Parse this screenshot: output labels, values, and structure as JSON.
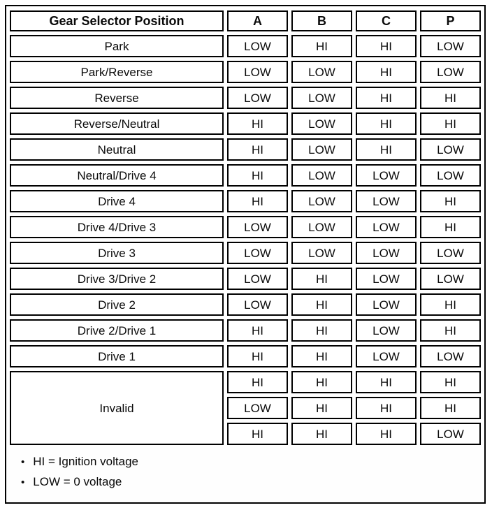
{
  "table": {
    "header": {
      "position_label": "Gear Selector Position",
      "columns": [
        "A",
        "B",
        "C",
        "P"
      ]
    },
    "rows": [
      {
        "label": "Park",
        "values": [
          "LOW",
          "HI",
          "HI",
          "LOW"
        ]
      },
      {
        "label": "Park/Reverse",
        "values": [
          "LOW",
          "LOW",
          "HI",
          "LOW"
        ]
      },
      {
        "label": "Reverse",
        "values": [
          "LOW",
          "LOW",
          "HI",
          "HI"
        ]
      },
      {
        "label": "Reverse/Neutral",
        "values": [
          "HI",
          "LOW",
          "HI",
          "HI"
        ]
      },
      {
        "label": "Neutral",
        "values": [
          "HI",
          "LOW",
          "HI",
          "LOW"
        ]
      },
      {
        "label": "Neutral/Drive 4",
        "values": [
          "HI",
          "LOW",
          "LOW",
          "LOW"
        ]
      },
      {
        "label": "Drive 4",
        "values": [
          "HI",
          "LOW",
          "LOW",
          "HI"
        ]
      },
      {
        "label": "Drive 4/Drive 3",
        "values": [
          "LOW",
          "LOW",
          "LOW",
          "HI"
        ]
      },
      {
        "label": "Drive 3",
        "values": [
          "LOW",
          "LOW",
          "LOW",
          "LOW"
        ]
      },
      {
        "label": "Drive 3/Drive 2",
        "values": [
          "LOW",
          "HI",
          "LOW",
          "LOW"
        ]
      },
      {
        "label": "Drive 2",
        "values": [
          "LOW",
          "HI",
          "LOW",
          "HI"
        ]
      },
      {
        "label": "Drive 2/Drive 1",
        "values": [
          "HI",
          "HI",
          "LOW",
          "HI"
        ]
      },
      {
        "label": "Drive 1",
        "values": [
          "HI",
          "HI",
          "LOW",
          "LOW"
        ]
      }
    ],
    "invalid": {
      "label": "Invalid",
      "rows": [
        [
          "HI",
          "HI",
          "HI",
          "HI"
        ],
        [
          "LOW",
          "HI",
          "HI",
          "HI"
        ],
        [
          "HI",
          "HI",
          "HI",
          "LOW"
        ]
      ]
    }
  },
  "notes": {
    "bullet": "•",
    "items": [
      "HI = Ignition voltage",
      "LOW = 0 voltage"
    ]
  }
}
